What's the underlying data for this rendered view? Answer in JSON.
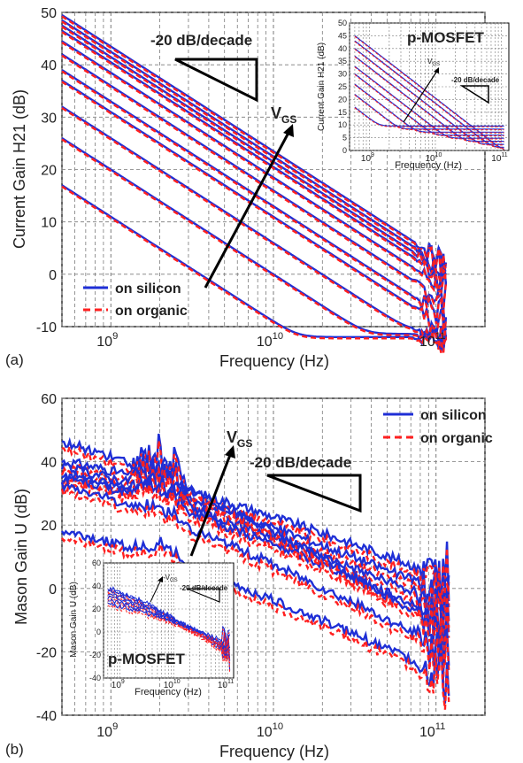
{
  "colors": {
    "silicon": "#1f2fd6",
    "organic": "#ff2020",
    "grid": "#7a7a7a",
    "axis": "#000000",
    "inset_pmos_a": "#7a3aa0"
  },
  "panels": [
    {
      "id": "a",
      "panel_label": "(a)",
      "annotations": {
        "slope": "-20 dB/decade",
        "vgs_main": "V",
        "vgs_sub": "GS"
      },
      "legend": {
        "silicon_label": "on silicon",
        "organic_label": "on organic"
      },
      "inset": {
        "title": "p-MOSFET",
        "ylabel": "Current Gain H21 (dB)",
        "xlabel": "Frequency (Hz)",
        "slope": "-20 dB/decade",
        "vgs": "V",
        "vgs_sub": "GS",
        "yticks": [
          "50",
          "45",
          "40",
          "35",
          "30",
          "25",
          "20",
          "15",
          "10",
          "5",
          "0"
        ],
        "xticks_exp": [
          "9",
          "10",
          "11"
        ]
      }
    },
    {
      "id": "b",
      "panel_label": "(b)",
      "annotations": {
        "slope": "-20 dB/decade",
        "vgs_main": "V",
        "vgs_sub": "GS"
      },
      "legend": {
        "silicon_label": "on silicon",
        "organic_label": "on organic"
      },
      "inset": {
        "title": "p-MOSFET",
        "ylabel": "Mason Gain U (dB)",
        "xlabel": "Frequency (Hz)",
        "slope": "-20 dB/decade",
        "vgs": "-V",
        "vgs_sub": "GS",
        "yticks": [
          "60",
          "40",
          "20",
          "0",
          "-20",
          "-40"
        ],
        "xticks_exp": [
          "9",
          "10",
          "11"
        ]
      }
    }
  ],
  "chart_data": [
    {
      "type": "line",
      "xlabel": "Frequency (Hz)",
      "ylabel": "Current Gain H21 (dB)",
      "xscale": "log",
      "xlim": [
        500000000.0,
        200000000000.0
      ],
      "ylim": [
        -10,
        50
      ],
      "yticks": [
        "50",
        "40",
        "30",
        "20",
        "10",
        "0",
        "-10"
      ],
      "xticks_exp": [
        "9",
        "10",
        "11"
      ],
      "grid": true,
      "series": [
        {
          "name": "on silicon",
          "style": "solid"
        },
        {
          "name": "on organic",
          "style": "dashed"
        }
      ],
      "curves": [
        {
          "start_db": 49.5,
          "slope_db_per_decade": -20,
          "floor_db": -6
        },
        {
          "start_db": 48.5,
          "slope_db_per_decade": -20,
          "floor_db": -6
        },
        {
          "start_db": 47.5,
          "slope_db_per_decade": -20,
          "floor_db": -6
        },
        {
          "start_db": 46.5,
          "slope_db_per_decade": -20,
          "floor_db": -6
        },
        {
          "start_db": 44.5,
          "slope_db_per_decade": -20,
          "floor_db": -6
        },
        {
          "start_db": 42,
          "slope_db_per_decade": -20,
          "floor_db": -6
        },
        {
          "start_db": 39,
          "slope_db_per_decade": -20,
          "floor_db": -6
        },
        {
          "start_db": 37,
          "slope_db_per_decade": -20,
          "floor_db": -6
        },
        {
          "start_db": 32,
          "slope_db_per_decade": -20,
          "floor_db": -6
        },
        {
          "start_db": 26,
          "slope_db_per_decade": -20,
          "floor_db": -6
        },
        {
          "start_db": 17,
          "slope_db_per_decade": -20,
          "floor_db": -6
        }
      ]
    },
    {
      "type": "line",
      "xlabel": "Frequency (Hz)",
      "ylabel": "Mason Gain U (dB)",
      "xscale": "log",
      "xlim": [
        500000000.0,
        200000000000.0
      ],
      "ylim": [
        -40,
        60
      ],
      "yticks": [
        "60",
        "40",
        "20",
        "0",
        "-20",
        "-40"
      ],
      "xticks_exp": [
        "9",
        "10",
        "11"
      ],
      "grid": true,
      "series": [
        {
          "name": "on silicon",
          "style": "solid"
        },
        {
          "name": "on organic",
          "style": "dashed"
        }
      ],
      "curves": [
        {
          "start_db": 40,
          "peak_db": 56,
          "end_db": 3
        },
        {
          "start_db": 38,
          "peak_db": 52,
          "end_db": -2
        },
        {
          "start_db": 36,
          "peak_db": 48,
          "end_db": -6
        },
        {
          "start_db": 35,
          "peak_db": 44,
          "end_db": -10
        },
        {
          "start_db": 46,
          "peak_db": 40,
          "end_db": -14
        },
        {
          "start_db": 32,
          "peak_db": 36,
          "end_db": -20
        },
        {
          "start_db": 18,
          "peak_db": 24,
          "end_db": -28
        }
      ]
    }
  ]
}
